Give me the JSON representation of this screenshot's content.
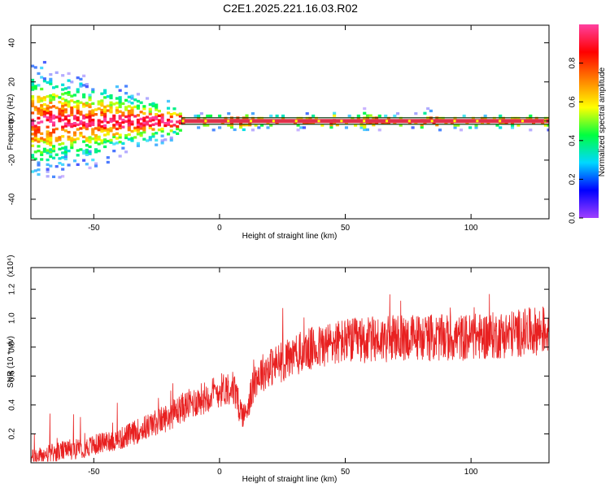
{
  "title": "C2E1.2025.221.16.03.R02",
  "colors": {
    "snr_line": "#e82020",
    "baseline_ridge": "#e0304a",
    "ridge_outline": "#0a3a10"
  },
  "chart_data": [
    {
      "type": "heatmap",
      "xlabel": "Height of straight line (km)",
      "ylabel": "Frequency (Hz)",
      "xlim": [
        -75,
        131
      ],
      "ylim": [
        -50,
        49
      ],
      "xticks": [
        -50,
        0,
        50,
        100
      ],
      "yticks": [
        40,
        20,
        0,
        -20,
        -40
      ],
      "zlabel": "Normalized spectral amplitude",
      "zlim": [
        0,
        1
      ],
      "zticks": [
        "0.0",
        "0.2",
        "0.4",
        "0.6",
        "0.8"
      ],
      "colormap": [
        "#a040ff",
        "#0000ff",
        "#00d8ff",
        "#00ff40",
        "#ffff00",
        "#ff8000",
        "#ff0000",
        "#ff40a0"
      ],
      "ridge": {
        "x_start": -15,
        "x_end": 131,
        "frequency": 0
      },
      "grid": false
    },
    {
      "type": "line",
      "xlabel": "Height of straight line (km)",
      "ylabel": "SNR (10 * v/v)",
      "scale_note": "(x10⁴)",
      "xlim": [
        -75,
        131
      ],
      "ylim": [
        0,
        1.35
      ],
      "xticks": [
        -50,
        0,
        50,
        100
      ],
      "yticks": [
        0.2,
        0.4,
        0.6,
        0.8,
        1.0,
        1.2
      ],
      "grid": false,
      "series": [
        {
          "x": [
            -75,
            -70,
            -65,
            -60,
            -55,
            -50,
            -45,
            -40,
            -35,
            -30,
            -25,
            -20,
            -15,
            -10,
            -5,
            0,
            5,
            8,
            10,
            12,
            15,
            20,
            25,
            30,
            35,
            40,
            45,
            50,
            60,
            70,
            80,
            90,
            100,
            110,
            120,
            131
          ],
          "y": [
            0.03,
            0.05,
            0.07,
            0.09,
            0.1,
            0.12,
            0.15,
            0.16,
            0.2,
            0.24,
            0.28,
            0.32,
            0.38,
            0.42,
            0.46,
            0.5,
            0.53,
            0.38,
            0.32,
            0.45,
            0.6,
            0.66,
            0.7,
            0.74,
            0.78,
            0.8,
            0.83,
            0.84,
            0.85,
            0.86,
            0.87,
            0.86,
            0.87,
            0.88,
            0.9,
            0.92
          ]
        }
      ]
    }
  ]
}
